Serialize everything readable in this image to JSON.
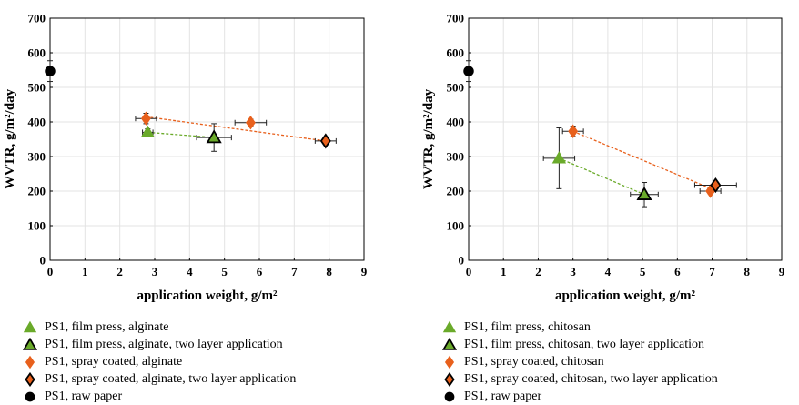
{
  "chart_data": [
    {
      "type": "scatter",
      "title": "",
      "xlabel": "application weight, g/m²",
      "ylabel": "WVTR, g/m²/day",
      "xlim": [
        0,
        9
      ],
      "ylim": [
        0,
        700
      ],
      "xticks": [
        "0",
        "1",
        "2",
        "3",
        "4",
        "5",
        "6",
        "7",
        "8",
        "9"
      ],
      "yticks": [
        "0",
        "100",
        "200",
        "300",
        "400",
        "500",
        "600",
        "700"
      ],
      "grid": true,
      "legend_position": "below",
      "series": [
        {
          "name": "PS1, film press, alginate",
          "marker": "triangle",
          "color": "#6aaa2a",
          "edge": "#6aaa2a",
          "points": [
            {
              "x": 2.8,
              "y": 370,
              "xerr": 0.15,
              "yerr": 10
            }
          ]
        },
        {
          "name": "PS1, film press, alginate, two layer application",
          "marker": "triangle",
          "color": "#6aaa2a",
          "edge": "#000000",
          "points": [
            {
              "x": 4.7,
              "y": 355,
              "xerr": 0.5,
              "yerr": 40
            }
          ]
        },
        {
          "name": "PS1, spray coated, alginate",
          "marker": "diamond",
          "color": "#e8601c",
          "edge": "#e8601c",
          "points": [
            {
              "x": 2.75,
              "y": 410,
              "xerr": 0.3,
              "yerr": 15
            },
            {
              "x": 5.75,
              "y": 398,
              "xerr": 0.45,
              "yerr": 10
            }
          ]
        },
        {
          "name": "PS1, spray coated, alginate, two layer application",
          "marker": "diamond",
          "color": "#e8601c",
          "edge": "#000000",
          "points": [
            {
              "x": 7.9,
              "y": 345,
              "xerr": 0.3,
              "yerr": 10
            }
          ]
        },
        {
          "name": "PS1, raw paper",
          "marker": "circle",
          "color": "#000000",
          "edge": "#000000",
          "points": [
            {
              "x": 0,
              "y": 547,
              "xerr": 0,
              "yerr": 30
            }
          ]
        }
      ],
      "trendlines": [
        {
          "color": "#6aaa2a",
          "x": [
            2.8,
            4.7
          ],
          "y": [
            370,
            355
          ]
        },
        {
          "color": "#e8601c",
          "x": [
            2.75,
            7.9
          ],
          "y": [
            415,
            345
          ]
        }
      ]
    },
    {
      "type": "scatter",
      "title": "",
      "xlabel": "application weight, g/m²",
      "ylabel": "WVTR, g/m²/day",
      "xlim": [
        0,
        9
      ],
      "ylim": [
        0,
        700
      ],
      "xticks": [
        "0",
        "1",
        "2",
        "3",
        "4",
        "5",
        "6",
        "7",
        "8",
        "9"
      ],
      "yticks": [
        "0",
        "100",
        "200",
        "300",
        "400",
        "500",
        "600",
        "700"
      ],
      "grid": true,
      "legend_position": "below",
      "series": [
        {
          "name": "PS1, film press, chitosan",
          "marker": "triangle",
          "color": "#6aaa2a",
          "edge": "#6aaa2a",
          "points": [
            {
              "x": 2.6,
              "y": 295,
              "xerr": 0.45,
              "yerr": 88
            }
          ]
        },
        {
          "name": "PS1, film press, chitosan, two layer application",
          "marker": "triangle",
          "color": "#6aaa2a",
          "edge": "#000000",
          "points": [
            {
              "x": 5.05,
              "y": 190,
              "xerr": 0.4,
              "yerr": 35
            }
          ]
        },
        {
          "name": "PS1, spray coated, chitosan",
          "marker": "diamond",
          "color": "#e8601c",
          "edge": "#e8601c",
          "points": [
            {
              "x": 3.0,
              "y": 373,
              "xerr": 0.3,
              "yerr": 15
            },
            {
              "x": 6.95,
              "y": 200,
              "xerr": 0.3,
              "yerr": 8
            }
          ]
        },
        {
          "name": "PS1, spray coated, chitosan, two layer application",
          "marker": "diamond",
          "color": "#e8601c",
          "edge": "#000000",
          "points": [
            {
              "x": 7.1,
              "y": 217,
              "xerr": 0.6,
              "yerr": 10
            }
          ]
        },
        {
          "name": "PS1, raw paper",
          "marker": "circle",
          "color": "#000000",
          "edge": "#000000",
          "points": [
            {
              "x": 0,
              "y": 547,
              "xerr": 0,
              "yerr": 30
            }
          ]
        }
      ],
      "trendlines": [
        {
          "color": "#6aaa2a",
          "x": [
            2.6,
            5.05
          ],
          "y": [
            295,
            190
          ]
        },
        {
          "color": "#e8601c",
          "x": [
            3.0,
            6.95
          ],
          "y": [
            373,
            208
          ]
        }
      ]
    }
  ]
}
